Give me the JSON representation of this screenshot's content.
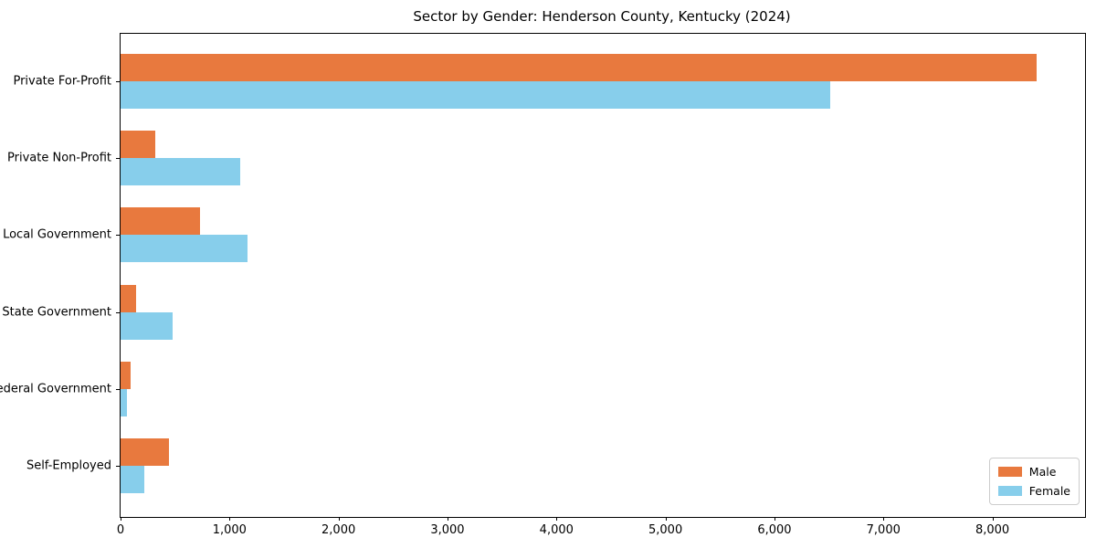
{
  "chart_data": {
    "type": "bar",
    "orientation": "horizontal",
    "title": "Sector by Gender: Henderson County, Kentucky (2024)",
    "categories": [
      "Private For-Profit",
      "Private Non-Profit",
      "Local Government",
      "State Government",
      "Federal Government",
      "Self-Employed"
    ],
    "series": [
      {
        "name": "Male",
        "color": "#E8793E",
        "values": [
          8410,
          320,
          730,
          140,
          90,
          440
        ]
      },
      {
        "name": "Female",
        "color": "#87CEEB",
        "values": [
          6515,
          1095,
          1165,
          475,
          60,
          215
        ]
      }
    ],
    "xlabel": "",
    "ylabel": "",
    "xlim": [
      0,
      8850
    ],
    "x_ticks": [
      0,
      1000,
      2000,
      3000,
      4000,
      5000,
      6000,
      7000,
      8000
    ],
    "x_tick_labels": [
      "0",
      "1,000",
      "2,000",
      "3,000",
      "4,000",
      "5,000",
      "6,000",
      "7,000",
      "8,000"
    ],
    "grid": false,
    "legend": {
      "position": "lower right",
      "entries": [
        "Male",
        "Female"
      ]
    }
  }
}
